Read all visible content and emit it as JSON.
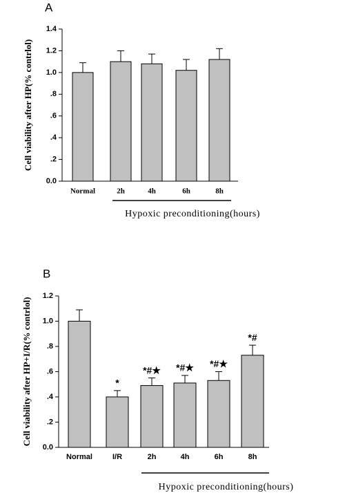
{
  "chart_data": [
    {
      "type": "bar",
      "panel": "A",
      "y_label": "Cell viability after HP(% contrlol)",
      "categories": [
        "Normal",
        "2h",
        "4h",
        "6h",
        "8h"
      ],
      "values": [
        1.0,
        1.1,
        1.08,
        1.02,
        1.12
      ],
      "errors": [
        0.09,
        0.1,
        0.09,
        0.1,
        0.1
      ],
      "color": "#c0c0c0",
      "ylim": [
        0,
        1.4
      ],
      "yticks": [
        {
          "value": 0,
          "label": "0.0"
        },
        {
          "value": 0.2,
          "label": ".2"
        },
        {
          "value": 0.4,
          "label": ".4"
        },
        {
          "value": 0.6,
          "label": ".6"
        },
        {
          "value": 0.8,
          "label": ".8"
        },
        {
          "value": 1.0,
          "label": "1.0"
        },
        {
          "value": 1.2,
          "label": "1.2"
        },
        {
          "value": 1.4,
          "label": "1.4"
        }
      ],
      "annotation": "Hypoxic preconditioning(hours)"
    },
    {
      "type": "bar",
      "panel": "B",
      "y_label": "Cell viability after HP+I/R(% contrlol)",
      "categories": [
        "Normal",
        "I/R",
        "2h",
        "4h",
        "6h",
        "8h"
      ],
      "values": [
        1.0,
        0.4,
        0.49,
        0.51,
        0.53,
        0.73
      ],
      "errors": [
        0.09,
        0.05,
        0.06,
        0.06,
        0.07,
        0.08
      ],
      "value_labels": [
        null,
        "*",
        "*#★",
        "*#★",
        "*#★",
        "*#"
      ],
      "color": "#c0c0c0",
      "ylim": [
        0,
        1.2
      ],
      "yticks": [
        {
          "value": 0,
          "label": "0.0"
        },
        {
          "value": 0.2,
          "label": ".2"
        },
        {
          "value": 0.4,
          "label": ".4"
        },
        {
          "value": 0.6,
          "label": ".6"
        },
        {
          "value": 0.8,
          "label": ".8"
        },
        {
          "value": 1.0,
          "label": "1.0"
        },
        {
          "value": 1.2,
          "label": "1.2"
        }
      ],
      "annotation": "Hypoxic preconditioning(hours)"
    }
  ]
}
